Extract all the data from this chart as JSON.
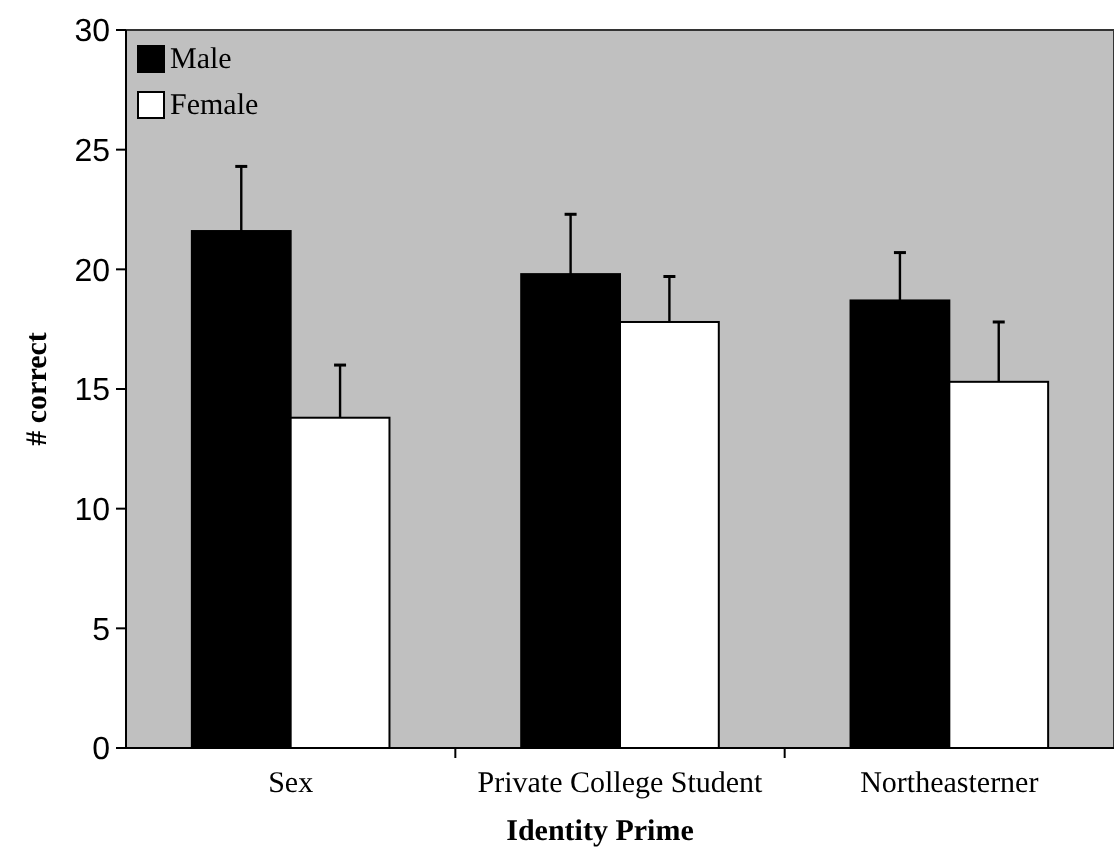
{
  "chart_data": {
    "type": "bar",
    "xlabel": "Identity Prime",
    "ylabel": "# correct",
    "categories": [
      "Sex",
      "Private College Student",
      "Northeasterner"
    ],
    "series": [
      {
        "name": "Male",
        "color": "#000000",
        "values": [
          21.6,
          19.8,
          18.7
        ],
        "errors": [
          [
            21.6,
            24.3
          ],
          [
            19.8,
            22.3
          ],
          [
            18.7,
            20.7
          ]
        ]
      },
      {
        "name": "Female",
        "color": "#ffffff",
        "values": [
          13.8,
          17.8,
          15.3
        ],
        "errors": [
          [
            13.8,
            16.0
          ],
          [
            17.8,
            19.7
          ],
          [
            15.3,
            17.8
          ]
        ]
      }
    ],
    "ylim": [
      0,
      30
    ],
    "yticks": [
      0,
      5,
      10,
      15,
      20,
      25,
      30
    ],
    "grid": false,
    "legend": "top left"
  }
}
